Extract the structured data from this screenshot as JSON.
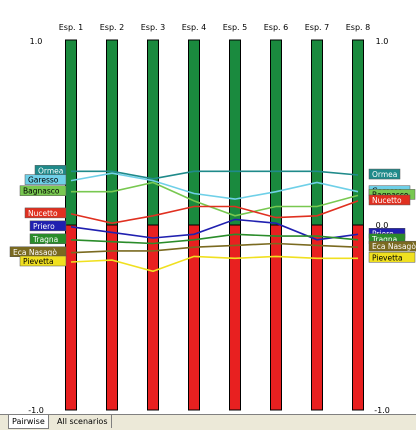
{
  "chart_data": {
    "type": "parallel-coordinates",
    "axes": [
      "Esp. 1",
      "Esp. 2",
      "Esp. 3",
      "Esp. 4",
      "Esp. 5",
      "Esp. 6",
      "Esp. 7",
      "Esp. 8"
    ],
    "ylim": [
      -1.0,
      1.0
    ],
    "left_ticks": [
      "1.0",
      "-1.0"
    ],
    "right_ticks": [
      "1.0",
      "0.0",
      "-1.0"
    ],
    "bar_colors": {
      "positive": "#1a8a3e",
      "negative": "#e82020"
    },
    "series": [
      {
        "name": "Ormea",
        "color": "#1f8a8a",
        "values": [
          0.29,
          0.29,
          0.25,
          0.29,
          0.29,
          0.29,
          0.29,
          0.27
        ]
      },
      {
        "name": "Garesso",
        "color": "#6fd0e8",
        "values": [
          0.24,
          0.28,
          0.24,
          0.17,
          0.14,
          0.18,
          0.23,
          0.18
        ]
      },
      {
        "name": "Bagnasco",
        "color": "#78c850",
        "values": [
          0.18,
          0.18,
          0.23,
          0.13,
          0.05,
          0.1,
          0.1,
          0.16
        ]
      },
      {
        "name": "Nucetto",
        "color": "#e03020",
        "values": [
          0.06,
          0.01,
          0.05,
          0.1,
          0.1,
          0.04,
          0.05,
          0.13
        ]
      },
      {
        "name": "Priero",
        "color": "#2020b0",
        "values": [
          -0.01,
          -0.04,
          -0.07,
          -0.05,
          0.03,
          0.01,
          -0.08,
          -0.05
        ]
      },
      {
        "name": "Tragna",
        "color": "#2a8c2a",
        "values": [
          -0.08,
          -0.09,
          -0.1,
          -0.08,
          -0.05,
          -0.06,
          -0.06,
          -0.08
        ]
      },
      {
        "name": "Eca Nasagò",
        "color": "#7a6a20",
        "values": [
          -0.15,
          -0.14,
          -0.14,
          -0.12,
          -0.11,
          -0.1,
          -0.11,
          -0.12
        ]
      },
      {
        "name": "Pievetta",
        "color": "#f0e020",
        "values": [
          -0.2,
          -0.19,
          -0.25,
          -0.17,
          -0.18,
          -0.17,
          -0.18,
          -0.18
        ]
      }
    ],
    "legend": "both-sides"
  },
  "tabs": [
    {
      "label": "Pairwise"
    },
    {
      "label": "All scenarios"
    }
  ]
}
